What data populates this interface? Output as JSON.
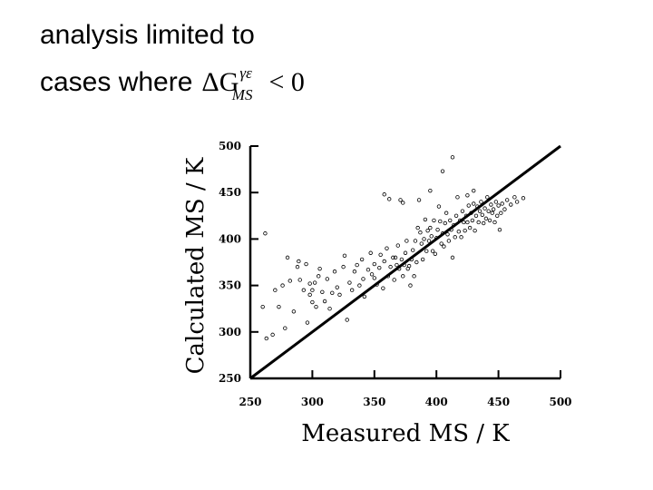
{
  "caption": {
    "line1": "analysis limited to",
    "line2": "cases where",
    "formula": {
      "symbol": "ΔG",
      "superscript": "γε",
      "subscript": "MS",
      "relation": "< 0"
    }
  },
  "chart_data": {
    "type": "scatter",
    "xlabel": "Measured MS / K",
    "ylabel": "Calculated MS / K",
    "xlim": [
      250,
      500
    ],
    "ylim": [
      250,
      500
    ],
    "xticks": [
      250,
      300,
      350,
      400,
      450,
      500
    ],
    "yticks": [
      250,
      300,
      350,
      400,
      450,
      500
    ],
    "grid": false,
    "reference_line": {
      "x": [
        250,
        500
      ],
      "y": [
        250,
        500
      ]
    },
    "series": [
      {
        "marker": "open-circle",
        "points": [
          [
            262,
            406
          ],
          [
            263,
            293
          ],
          [
            260,
            327
          ],
          [
            268,
            297
          ],
          [
            270,
            345
          ],
          [
            273,
            327
          ],
          [
            276,
            350
          ],
          [
            278,
            304
          ],
          [
            280,
            380
          ],
          [
            282,
            355
          ],
          [
            285,
            322
          ],
          [
            288,
            370
          ],
          [
            289,
            376
          ],
          [
            290,
            356
          ],
          [
            293,
            345
          ],
          [
            295,
            373
          ],
          [
            296,
            310
          ],
          [
            298,
            352
          ],
          [
            298,
            340
          ],
          [
            300,
            332
          ],
          [
            300,
            345
          ],
          [
            302,
            353
          ],
          [
            303,
            327
          ],
          [
            305,
            360
          ],
          [
            306,
            368
          ],
          [
            308,
            343
          ],
          [
            310,
            333
          ],
          [
            312,
            357
          ],
          [
            314,
            325
          ],
          [
            316,
            342
          ],
          [
            318,
            365
          ],
          [
            320,
            348
          ],
          [
            322,
            340
          ],
          [
            325,
            370
          ],
          [
            326,
            382
          ],
          [
            328,
            313
          ],
          [
            330,
            353
          ],
          [
            332,
            345
          ],
          [
            334,
            365
          ],
          [
            336,
            372
          ],
          [
            338,
            350
          ],
          [
            340,
            378
          ],
          [
            341,
            357
          ],
          [
            342,
            338
          ],
          [
            345,
            367
          ],
          [
            347,
            385
          ],
          [
            348,
            362
          ],
          [
            350,
            373
          ],
          [
            350,
            358
          ],
          [
            352,
            351
          ],
          [
            354,
            369
          ],
          [
            355,
            383
          ],
          [
            357,
            347
          ],
          [
            358,
            376
          ],
          [
            360,
            390
          ],
          [
            361,
            360
          ],
          [
            362,
            443
          ],
          [
            363,
            370
          ],
          [
            365,
            380
          ],
          [
            366,
            356
          ],
          [
            367,
            380
          ],
          [
            368,
            372
          ],
          [
            369,
            393
          ],
          [
            370,
            368
          ],
          [
            371,
            442
          ],
          [
            372,
            378
          ],
          [
            373,
            360
          ],
          [
            374,
            372
          ],
          [
            375,
            385
          ],
          [
            376,
            398
          ],
          [
            377,
            368
          ],
          [
            378,
            371
          ],
          [
            379,
            350
          ],
          [
            380,
            378
          ],
          [
            381,
            388
          ],
          [
            382,
            360
          ],
          [
            383,
            398
          ],
          [
            384,
            375
          ],
          [
            385,
            412
          ],
          [
            386,
            442
          ],
          [
            387,
            407
          ],
          [
            388,
            395
          ],
          [
            389,
            378
          ],
          [
            390,
            400
          ],
          [
            391,
            421
          ],
          [
            392,
            387
          ],
          [
            393,
            409
          ],
          [
            394,
            398
          ],
          [
            395,
            412
          ],
          [
            396,
            403
          ],
          [
            397,
            387
          ],
          [
            398,
            420
          ],
          [
            399,
            384
          ],
          [
            400,
            401
          ],
          [
            401,
            410
          ],
          [
            402,
            435
          ],
          [
            403,
            419
          ],
          [
            404,
            395
          ],
          [
            405,
            406
          ],
          [
            406,
            392
          ],
          [
            407,
            417
          ],
          [
            408,
            428
          ],
          [
            409,
            405
          ],
          [
            410,
            398
          ],
          [
            411,
            420
          ],
          [
            412,
            410
          ],
          [
            413,
            380
          ],
          [
            414,
            415
          ],
          [
            415,
            402
          ],
          [
            416,
            425
          ],
          [
            417,
            445
          ],
          [
            418,
            408
          ],
          [
            419,
            420
          ],
          [
            420,
            402
          ],
          [
            421,
            430
          ],
          [
            422,
            418
          ],
          [
            423,
            409
          ],
          [
            424,
            425
          ],
          [
            425,
            418
          ],
          [
            426,
            436
          ],
          [
            427,
            412
          ],
          [
            428,
            428
          ],
          [
            429,
            420
          ],
          [
            430,
            438
          ],
          [
            431,
            409
          ],
          [
            432,
            425
          ],
          [
            433,
            435
          ],
          [
            434,
            418
          ],
          [
            435,
            430
          ],
          [
            436,
            440
          ],
          [
            437,
            426
          ],
          [
            438,
            417
          ],
          [
            439,
            433
          ],
          [
            440,
            422
          ],
          [
            441,
            445
          ],
          [
            442,
            430
          ],
          [
            443,
            420
          ],
          [
            444,
            437
          ],
          [
            445,
            428
          ],
          [
            446,
            432
          ],
          [
            447,
            418
          ],
          [
            448,
            440
          ],
          [
            449,
            425
          ],
          [
            450,
            436
          ],
          [
            451,
            410
          ],
          [
            452,
            428
          ],
          [
            453,
            438
          ],
          [
            455,
            432
          ],
          [
            457,
            442
          ],
          [
            460,
            437
          ],
          [
            463,
            445
          ],
          [
            465,
            440
          ],
          [
            470,
            444
          ],
          [
            405,
            473
          ],
          [
            413,
            488
          ],
          [
            395,
            452
          ],
          [
            430,
            452
          ],
          [
            425,
            447
          ],
          [
            373,
            439
          ],
          [
            358,
            448
          ]
        ]
      }
    ]
  }
}
